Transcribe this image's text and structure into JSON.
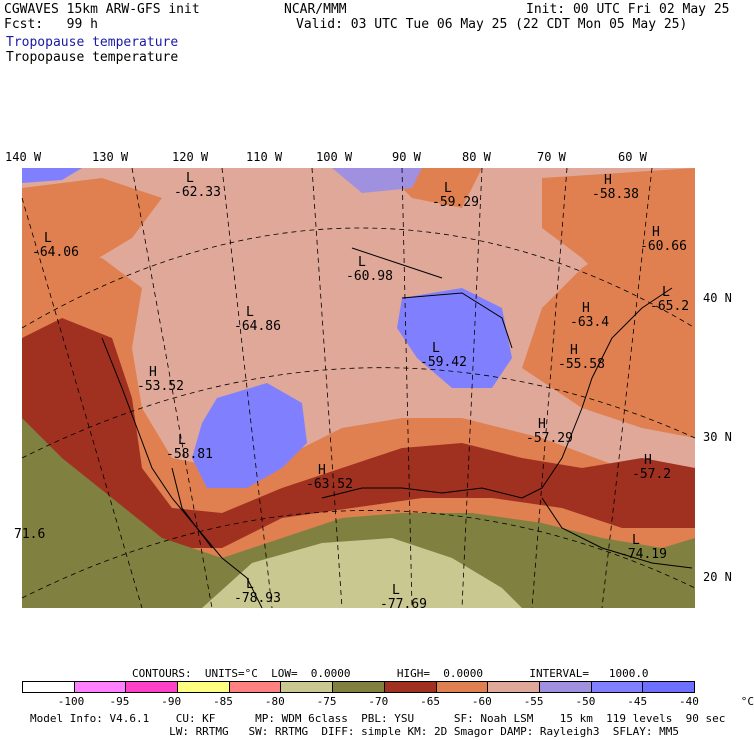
{
  "header": {
    "model": "CGWAVES 15km ARW-GFS init",
    "fcst": "Fcst:   99 h",
    "field1": "Tropopause temperature",
    "field2": "Tropopause temperature",
    "org": "NCAR/MMM",
    "init": "Init: 00 UTC Fri 02 May 25",
    "valid": "Valid: 03 UTC Tue 06 May 25 (22 CDT Mon 05 May 25)"
  },
  "axes": {
    "longitudes": [
      "140 W",
      "130 W",
      "120 W",
      "110 W",
      "100 W",
      "90 W",
      "80 W",
      "70 W",
      "60 W"
    ],
    "latitudes": [
      "40 N",
      "30 N",
      "20 N"
    ]
  },
  "map_labels": [
    {
      "t": "L",
      "v": "-62.33"
    },
    {
      "t": "L",
      "v": "-59.29"
    },
    {
      "t": "H",
      "v": "-58.38"
    },
    {
      "t": "L",
      "v": "-64.06"
    },
    {
      "t": "L",
      "v": "-60.98"
    },
    {
      "t": "H",
      "v": "-60.66"
    },
    {
      "t": "L",
      "v": "-64.86"
    },
    {
      "t": "L",
      "v": "-65.2"
    },
    {
      "t": "H",
      "v": "-63.4"
    },
    {
      "t": "L",
      "v": "-59.42"
    },
    {
      "t": "H",
      "v": "-55.58"
    },
    {
      "t": "H",
      "v": "-53.52"
    },
    {
      "t": "H",
      "v": "-57.29"
    },
    {
      "t": "L",
      "v": "-58.81"
    },
    {
      "t": "H",
      "v": "-63.52"
    },
    {
      "t": "H",
      "v": "-57.2"
    },
    {
      "t": "",
      "v": "71.6"
    },
    {
      "t": "L",
      "v": "-74.19"
    },
    {
      "t": "L",
      "v": "-78.93"
    },
    {
      "t": "L",
      "v": "-77.69"
    }
  ],
  "legend_info": {
    "contours": "CONTOURS:  UNITS=°C  LOW=  0.0000       HIGH=  0.0000       INTERVAL=   1000.0",
    "colors": [
      "#ffffff",
      "#ff80ff",
      "#ff40c8",
      "#ffff80",
      "#ff8080",
      "#c8c890",
      "#808040",
      "#a03020",
      "#e08050",
      "#e0a898",
      "#a090e0",
      "#8080ff",
      "#6e6eff"
    ],
    "ticks": [
      "-100",
      "-95",
      "-90",
      "-85",
      "-80",
      "-75",
      "-70",
      "-65",
      "-60",
      "-55",
      "-50",
      "-45",
      "-40",
      "°C"
    ]
  },
  "footer": {
    "line1": "Model Info: V4.6.1    CU: KF      MP: WDM 6class  PBL: YSU      SF: Noah LSM    15 km  119 levels  90 sec",
    "line2": "                     LW: RRTMG   SW: RRTMG  DIFF: simple KM: 2D Smagor DAMP: Rayleigh3  SFLAY: MM5"
  }
}
